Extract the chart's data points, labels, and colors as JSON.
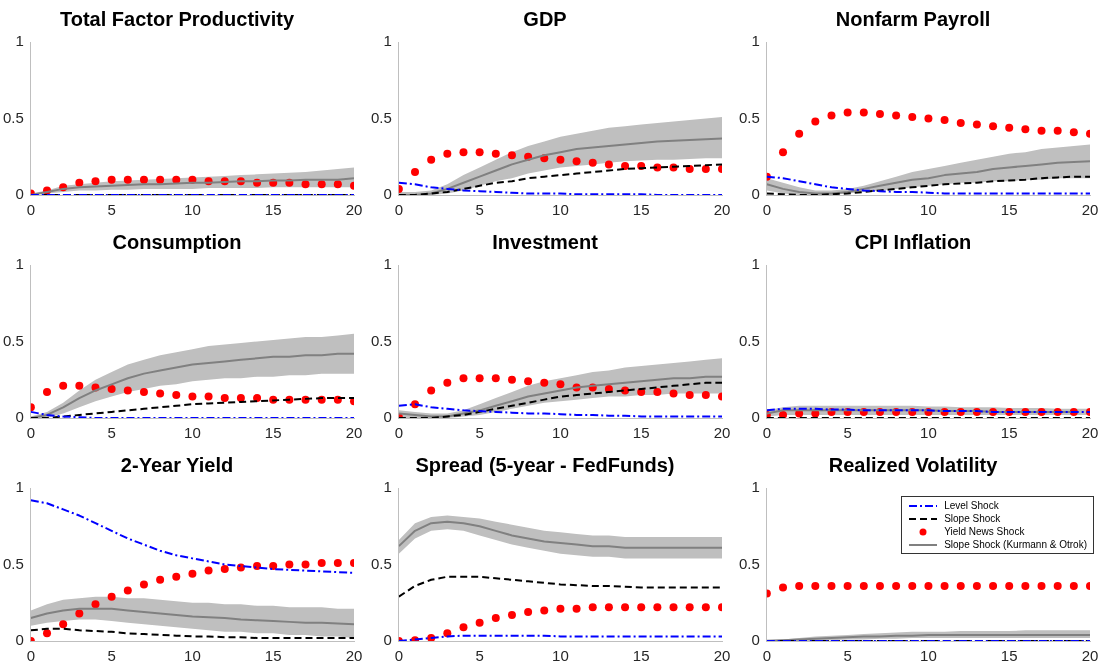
{
  "chart_data": [
    {
      "type": "line",
      "title": "Total Factor Productivity",
      "x": [
        0,
        1,
        2,
        3,
        4,
        5,
        6,
        7,
        8,
        9,
        10,
        11,
        12,
        13,
        14,
        15,
        16,
        17,
        18,
        19,
        20
      ],
      "xlim": [
        0,
        20
      ],
      "xticks": [
        0,
        5,
        10,
        15,
        20
      ],
      "ylim": [
        0,
        1
      ],
      "yticks": [
        0,
        0.5,
        1
      ],
      "grid": false,
      "legend": false,
      "series": [
        {
          "type": "line",
          "color": "#0000ff",
          "line_style": "dashdot",
          "values": [
            0,
            0,
            0,
            0,
            0,
            0,
            0,
            0,
            0,
            0,
            0,
            0,
            0,
            0,
            0,
            0,
            0,
            0,
            0,
            0,
            0
          ]
        },
        {
          "type": "line",
          "color": "#000000",
          "line_style": "dashed",
          "values": [
            0,
            0,
            0,
            0,
            0,
            0,
            0,
            0,
            0,
            0,
            0,
            0,
            0,
            0,
            0,
            0,
            0,
            0,
            0,
            0,
            0
          ]
        },
        {
          "type": "scatter",
          "color": "#ff0000",
          "marker": "circle",
          "values": [
            0.01,
            0.03,
            0.05,
            0.08,
            0.09,
            0.1,
            0.1,
            0.1,
            0.1,
            0.1,
            0.1,
            0.09,
            0.09,
            0.09,
            0.08,
            0.08,
            0.08,
            0.07,
            0.07,
            0.07,
            0.06
          ]
        },
        {
          "type": "line",
          "color": "#808080",
          "line_style": "solid",
          "values": [
            0,
            0.02,
            0.04,
            0.05,
            0.055,
            0.06,
            0.065,
            0.07,
            0.07,
            0.075,
            0.08,
            0.08,
            0.085,
            0.09,
            0.09,
            0.095,
            0.095,
            0.1,
            0.1,
            0.1,
            0.11
          ],
          "lower": [
            0,
            0.01,
            0.02,
            0.03,
            0.03,
            0.035,
            0.035,
            0.04,
            0.04,
            0.04,
            0.04,
            0.045,
            0.045,
            0.045,
            0.045,
            0.05,
            0.05,
            0.05,
            0.05,
            0.05,
            0.05
          ],
          "upper": [
            0.01,
            0.03,
            0.06,
            0.07,
            0.08,
            0.09,
            0.095,
            0.1,
            0.105,
            0.11,
            0.115,
            0.12,
            0.125,
            0.13,
            0.135,
            0.14,
            0.145,
            0.15,
            0.16,
            0.17,
            0.18
          ]
        }
      ]
    },
    {
      "type": "line",
      "title": "GDP",
      "x": [
        0,
        1,
        2,
        3,
        4,
        5,
        6,
        7,
        8,
        9,
        10,
        11,
        12,
        13,
        14,
        15,
        16,
        17,
        18,
        19,
        20
      ],
      "xlim": [
        0,
        20
      ],
      "xticks": [
        0,
        5,
        10,
        15,
        20
      ],
      "ylim": [
        0,
        1
      ],
      "yticks": [
        0,
        0.5,
        1
      ],
      "grid": false,
      "legend": false,
      "series": [
        {
          "type": "line",
          "color": "#0000ff",
          "line_style": "dashdot",
          "values": [
            0.08,
            0.07,
            0.05,
            0.04,
            0.03,
            0.025,
            0.02,
            0.015,
            0.01,
            0.01,
            0.01,
            0.005,
            0.005,
            0.005,
            0.005,
            0.005,
            0,
            0,
            0,
            0,
            0
          ]
        },
        {
          "type": "line",
          "color": "#000000",
          "line_style": "dashed",
          "values": [
            0,
            0,
            0.01,
            0.02,
            0.04,
            0.06,
            0.08,
            0.09,
            0.11,
            0.12,
            0.13,
            0.14,
            0.15,
            0.16,
            0.17,
            0.175,
            0.18,
            0.185,
            0.19,
            0.195,
            0.2
          ]
        },
        {
          "type": "scatter",
          "color": "#ff0000",
          "marker": "circle",
          "values": [
            0.04,
            0.15,
            0.23,
            0.27,
            0.28,
            0.28,
            0.27,
            0.26,
            0.25,
            0.24,
            0.23,
            0.22,
            0.21,
            0.2,
            0.19,
            0.19,
            0.18,
            0.18,
            0.17,
            0.17,
            0.17
          ]
        },
        {
          "type": "line",
          "color": "#808080",
          "line_style": "solid",
          "values": [
            0,
            0,
            0.01,
            0.04,
            0.08,
            0.12,
            0.16,
            0.2,
            0.23,
            0.26,
            0.28,
            0.3,
            0.31,
            0.32,
            0.33,
            0.34,
            0.35,
            0.355,
            0.36,
            0.365,
            0.37
          ],
          "lower": [
            0,
            0,
            0,
            0.01,
            0.03,
            0.06,
            0.09,
            0.11,
            0.14,
            0.16,
            0.18,
            0.19,
            0.2,
            0.21,
            0.22,
            0.225,
            0.23,
            0.23,
            0.235,
            0.24,
            0.24
          ],
          "upper": [
            0.02,
            0.02,
            0.03,
            0.07,
            0.13,
            0.18,
            0.23,
            0.28,
            0.32,
            0.35,
            0.38,
            0.4,
            0.42,
            0.44,
            0.45,
            0.46,
            0.47,
            0.48,
            0.49,
            0.5,
            0.51
          ]
        }
      ]
    },
    {
      "type": "line",
      "title": "Nonfarm Payroll",
      "x": [
        0,
        1,
        2,
        3,
        4,
        5,
        6,
        7,
        8,
        9,
        10,
        11,
        12,
        13,
        14,
        15,
        16,
        17,
        18,
        19,
        20
      ],
      "xlim": [
        0,
        20
      ],
      "xticks": [
        0,
        5,
        10,
        15,
        20
      ],
      "ylim": [
        0,
        1
      ],
      "yticks": [
        0,
        0.5,
        1
      ],
      "grid": false,
      "legend": false,
      "series": [
        {
          "type": "line",
          "color": "#0000ff",
          "line_style": "dashdot",
          "values": [
            0.12,
            0.11,
            0.09,
            0.07,
            0.05,
            0.04,
            0.03,
            0.025,
            0.02,
            0.02,
            0.015,
            0.01,
            0.01,
            0.01,
            0.01,
            0.01,
            0.01,
            0.01,
            0.01,
            0.01,
            0.01
          ]
        },
        {
          "type": "line",
          "color": "#000000",
          "line_style": "dashed",
          "values": [
            0.01,
            0.005,
            0,
            0,
            0.005,
            0.01,
            0.02,
            0.03,
            0.04,
            0.05,
            0.06,
            0.07,
            0.075,
            0.08,
            0.09,
            0.095,
            0.1,
            0.11,
            0.115,
            0.12,
            0.12
          ]
        },
        {
          "type": "scatter",
          "color": "#ff0000",
          "marker": "circle",
          "values": [
            0.12,
            0.28,
            0.4,
            0.48,
            0.52,
            0.54,
            0.54,
            0.53,
            0.52,
            0.51,
            0.5,
            0.49,
            0.47,
            0.46,
            0.45,
            0.44,
            0.43,
            0.42,
            0.42,
            0.41,
            0.4
          ]
        },
        {
          "type": "line",
          "color": "#808080",
          "line_style": "solid",
          "values": [
            0.07,
            0.04,
            0.02,
            0.01,
            0.01,
            0.02,
            0.04,
            0.06,
            0.08,
            0.1,
            0.11,
            0.13,
            0.14,
            0.15,
            0.17,
            0.18,
            0.19,
            0.2,
            0.21,
            0.215,
            0.22
          ],
          "lower": [
            0.03,
            0.01,
            0,
            0,
            0,
            0.01,
            0.02,
            0.03,
            0.04,
            0.05,
            0.06,
            0.07,
            0.08,
            0.08,
            0.09,
            0.09,
            0.1,
            0.1,
            0.11,
            0.11,
            0.11
          ],
          "upper": [
            0.11,
            0.08,
            0.05,
            0.03,
            0.03,
            0.04,
            0.06,
            0.09,
            0.12,
            0.15,
            0.17,
            0.19,
            0.21,
            0.23,
            0.25,
            0.27,
            0.28,
            0.3,
            0.31,
            0.32,
            0.33
          ]
        }
      ]
    },
    {
      "type": "line",
      "title": "Consumption",
      "x": [
        0,
        1,
        2,
        3,
        4,
        5,
        6,
        7,
        8,
        9,
        10,
        11,
        12,
        13,
        14,
        15,
        16,
        17,
        18,
        19,
        20
      ],
      "xlim": [
        0,
        20
      ],
      "xticks": [
        0,
        5,
        10,
        15,
        20
      ],
      "ylim": [
        0,
        1
      ],
      "yticks": [
        0,
        0.5,
        1
      ],
      "grid": false,
      "legend": false,
      "series": [
        {
          "type": "line",
          "color": "#0000ff",
          "line_style": "dashdot",
          "values": [
            0.04,
            0.02,
            0.01,
            0.005,
            0,
            0,
            0,
            0,
            0,
            0,
            0,
            0,
            0,
            0,
            0,
            0,
            0,
            0,
            0,
            0,
            0
          ]
        },
        {
          "type": "line",
          "color": "#000000",
          "line_style": "dashed",
          "values": [
            0,
            0,
            0.01,
            0.02,
            0.03,
            0.04,
            0.05,
            0.06,
            0.07,
            0.08,
            0.09,
            0.095,
            0.1,
            0.105,
            0.11,
            0.115,
            0.12,
            0.125,
            0.13,
            0.13,
            0.13
          ]
        },
        {
          "type": "scatter",
          "color": "#ff0000",
          "marker": "circle",
          "values": [
            0.07,
            0.17,
            0.21,
            0.21,
            0.2,
            0.19,
            0.18,
            0.17,
            0.16,
            0.15,
            0.14,
            0.14,
            0.13,
            0.13,
            0.13,
            0.12,
            0.12,
            0.12,
            0.12,
            0.12,
            0.11
          ]
        },
        {
          "type": "line",
          "color": "#808080",
          "line_style": "solid",
          "values": [
            0,
            0.02,
            0.07,
            0.13,
            0.18,
            0.22,
            0.26,
            0.29,
            0.31,
            0.33,
            0.35,
            0.36,
            0.37,
            0.38,
            0.39,
            0.4,
            0.4,
            0.41,
            0.41,
            0.42,
            0.42
          ],
          "lower": [
            0,
            0,
            0.03,
            0.07,
            0.11,
            0.14,
            0.17,
            0.19,
            0.21,
            0.22,
            0.24,
            0.25,
            0.26,
            0.26,
            0.27,
            0.27,
            0.28,
            0.28,
            0.29,
            0.29,
            0.29
          ],
          "upper": [
            0.01,
            0.04,
            0.1,
            0.18,
            0.25,
            0.3,
            0.35,
            0.38,
            0.41,
            0.43,
            0.45,
            0.47,
            0.48,
            0.49,
            0.5,
            0.51,
            0.52,
            0.53,
            0.53,
            0.54,
            0.55
          ]
        }
      ]
    },
    {
      "type": "line",
      "title": "Investment",
      "x": [
        0,
        1,
        2,
        3,
        4,
        5,
        6,
        7,
        8,
        9,
        10,
        11,
        12,
        13,
        14,
        15,
        16,
        17,
        18,
        19,
        20
      ],
      "xlim": [
        0,
        20
      ],
      "xticks": [
        0,
        5,
        10,
        15,
        20
      ],
      "ylim": [
        0,
        1
      ],
      "yticks": [
        0,
        0.5,
        1
      ],
      "grid": false,
      "legend": false,
      "series": [
        {
          "type": "line",
          "color": "#0000ff",
          "line_style": "dashdot",
          "values": [
            0.08,
            0.09,
            0.07,
            0.06,
            0.05,
            0.045,
            0.04,
            0.035,
            0.03,
            0.03,
            0.025,
            0.02,
            0.02,
            0.015,
            0.015,
            0.01,
            0.01,
            0.01,
            0.01,
            0.01,
            0.01
          ]
        },
        {
          "type": "line",
          "color": "#000000",
          "line_style": "dashed",
          "values": [
            0,
            0,
            0,
            0.01,
            0.02,
            0.04,
            0.06,
            0.08,
            0.1,
            0.12,
            0.14,
            0.15,
            0.16,
            0.17,
            0.18,
            0.19,
            0.2,
            0.21,
            0.22,
            0.23,
            0.23
          ]
        },
        {
          "type": "scatter",
          "color": "#ff0000",
          "marker": "circle",
          "values": [
            0.005,
            0.09,
            0.18,
            0.23,
            0.26,
            0.26,
            0.26,
            0.25,
            0.24,
            0.23,
            0.22,
            0.2,
            0.2,
            0.19,
            0.18,
            0.17,
            0.17,
            0.16,
            0.15,
            0.15,
            0.14
          ]
        },
        {
          "type": "line",
          "color": "#808080",
          "line_style": "solid",
          "values": [
            0.03,
            0.02,
            0.01,
            0.01,
            0.03,
            0.05,
            0.08,
            0.11,
            0.14,
            0.16,
            0.18,
            0.2,
            0.21,
            0.22,
            0.23,
            0.24,
            0.25,
            0.26,
            0.26,
            0.27,
            0.27
          ],
          "lower": [
            0,
            0,
            0,
            0,
            0.01,
            0.02,
            0.04,
            0.06,
            0.08,
            0.1,
            0.11,
            0.12,
            0.13,
            0.14,
            0.14,
            0.15,
            0.15,
            0.16,
            0.16,
            0.16,
            0.16
          ],
          "upper": [
            0.05,
            0.04,
            0.03,
            0.03,
            0.05,
            0.09,
            0.13,
            0.17,
            0.21,
            0.24,
            0.26,
            0.28,
            0.3,
            0.31,
            0.33,
            0.34,
            0.35,
            0.36,
            0.37,
            0.38,
            0.39
          ]
        }
      ]
    },
    {
      "type": "line",
      "title": "CPI Inflation",
      "x": [
        0,
        1,
        2,
        3,
        4,
        5,
        6,
        7,
        8,
        9,
        10,
        11,
        12,
        13,
        14,
        15,
        16,
        17,
        18,
        19,
        20
      ],
      "xlim": [
        0,
        20
      ],
      "xticks": [
        0,
        5,
        10,
        15,
        20
      ],
      "ylim": [
        0,
        1
      ],
      "yticks": [
        0,
        0.5,
        1
      ],
      "grid": false,
      "legend": false,
      "series": [
        {
          "type": "line",
          "color": "#0000ff",
          "line_style": "dashdot",
          "values": [
            0.05,
            0.06,
            0.06,
            0.06,
            0.055,
            0.055,
            0.05,
            0.05,
            0.05,
            0.05,
            0.05,
            0.045,
            0.045,
            0.045,
            0.04,
            0.04,
            0.04,
            0.04,
            0.04,
            0.04,
            0.04
          ]
        },
        {
          "type": "line",
          "color": "#000000",
          "line_style": "dashed",
          "values": [
            0,
            0,
            0,
            0,
            0,
            0,
            0,
            0,
            0,
            0,
            0,
            0,
            0,
            0,
            0,
            0,
            0,
            0,
            0,
            0,
            0
          ]
        },
        {
          "type": "scatter",
          "color": "#ff0000",
          "marker": "circle",
          "values": [
            0.02,
            0.02,
            0.03,
            0.03,
            0.04,
            0.04,
            0.04,
            0.04,
            0.04,
            0.04,
            0.04,
            0.04,
            0.04,
            0.04,
            0.04,
            0.04,
            0.04,
            0.04,
            0.04,
            0.04,
            0.04
          ]
        },
        {
          "type": "line",
          "color": "#808080",
          "line_style": "solid",
          "values": [
            0.03,
            0.05,
            0.05,
            0.05,
            0.05,
            0.05,
            0.05,
            0.05,
            0.05,
            0.05,
            0.05,
            0.045,
            0.045,
            0.045,
            0.04,
            0.04,
            0.04,
            0.04,
            0.04,
            0.04,
            null
          ],
          "lower": [
            0.01,
            0.02,
            0.02,
            0.02,
            0.02,
            0.02,
            0.02,
            0.02,
            0.02,
            0.02,
            0.02,
            0.02,
            0.02,
            0.02,
            0.02,
            0.02,
            0.02,
            0.02,
            0.02,
            0.02,
            0.02
          ],
          "upper": [
            0.05,
            0.07,
            0.08,
            0.08,
            0.08,
            0.08,
            0.08,
            0.08,
            0.08,
            0.08,
            0.075,
            0.075,
            0.07,
            0.07,
            0.07,
            0.065,
            0.065,
            0.065,
            0.06,
            0.06,
            0.06
          ]
        }
      ]
    },
    {
      "type": "line",
      "title": "2-Year Yield",
      "x": [
        0,
        1,
        2,
        3,
        4,
        5,
        6,
        7,
        8,
        9,
        10,
        11,
        12,
        13,
        14,
        15,
        16,
        17,
        18,
        19,
        20
      ],
      "xlim": [
        0,
        20
      ],
      "xticks": [
        0,
        5,
        10,
        15,
        20
      ],
      "ylim": [
        0,
        1
      ],
      "yticks": [
        0,
        0.5,
        1
      ],
      "grid": false,
      "legend": false,
      "series": [
        {
          "type": "line",
          "color": "#0000ff",
          "line_style": "dashdot",
          "values": [
            0.92,
            0.9,
            0.86,
            0.82,
            0.77,
            0.72,
            0.67,
            0.63,
            0.59,
            0.56,
            0.54,
            0.52,
            0.5,
            0.49,
            0.48,
            0.47,
            0.465,
            0.46,
            0.455,
            0.45,
            0.445
          ]
        },
        {
          "type": "line",
          "color": "#000000",
          "line_style": "dashed",
          "values": [
            0.07,
            0.08,
            0.08,
            0.07,
            0.065,
            0.06,
            0.05,
            0.045,
            0.04,
            0.035,
            0.03,
            0.03,
            0.025,
            0.025,
            0.02,
            0.02,
            0.02,
            0.02,
            0.02,
            0.02,
            0.02
          ]
        },
        {
          "type": "scatter",
          "color": "#ff0000",
          "marker": "circle",
          "values": [
            0,
            0.05,
            0.11,
            0.18,
            0.24,
            0.29,
            0.33,
            0.37,
            0.4,
            0.42,
            0.44,
            0.46,
            0.47,
            0.48,
            0.49,
            0.49,
            0.5,
            0.5,
            0.51,
            0.51,
            0.51
          ]
        },
        {
          "type": "line",
          "color": "#808080",
          "line_style": "solid",
          "values": [
            0.15,
            0.18,
            0.2,
            0.21,
            0.21,
            0.21,
            0.2,
            0.19,
            0.18,
            0.17,
            0.16,
            0.155,
            0.15,
            0.14,
            0.135,
            0.13,
            0.125,
            0.12,
            0.12,
            0.115,
            0.11
          ],
          "lower": [
            0.1,
            0.12,
            0.13,
            0.14,
            0.14,
            0.13,
            0.12,
            0.11,
            0.1,
            0.09,
            0.08,
            0.07,
            0.06,
            0.06,
            0.05,
            0.05,
            0.04,
            0.04,
            0.03,
            0.03,
            0.02
          ],
          "upper": [
            0.2,
            0.24,
            0.27,
            0.28,
            0.29,
            0.29,
            0.28,
            0.28,
            0.27,
            0.26,
            0.25,
            0.25,
            0.24,
            0.24,
            0.23,
            0.23,
            0.22,
            0.22,
            0.22,
            0.21,
            0.21
          ]
        }
      ]
    },
    {
      "type": "line",
      "title": "Spread (5-year - FedFunds)",
      "x": [
        0,
        1,
        2,
        3,
        4,
        5,
        6,
        7,
        8,
        9,
        10,
        11,
        12,
        13,
        14,
        15,
        16,
        17,
        18,
        19,
        20
      ],
      "xlim": [
        0,
        20
      ],
      "xticks": [
        0,
        5,
        10,
        15,
        20
      ],
      "ylim": [
        0,
        1
      ],
      "yticks": [
        0,
        0.5,
        1
      ],
      "grid": false,
      "legend": false,
      "series": [
        {
          "type": "line",
          "color": "#0000ff",
          "line_style": "dashdot",
          "values": [
            0,
            0.01,
            0.02,
            0.03,
            0.035,
            0.035,
            0.035,
            0.035,
            0.035,
            0.035,
            0.03,
            0.03,
            0.03,
            0.03,
            0.03,
            0.03,
            0.03,
            0.03,
            0.03,
            0.03,
            0.03
          ]
        },
        {
          "type": "line",
          "color": "#000000",
          "line_style": "dashed",
          "values": [
            0.29,
            0.36,
            0.4,
            0.42,
            0.42,
            0.42,
            0.41,
            0.4,
            0.39,
            0.38,
            0.37,
            0.365,
            0.36,
            0.36,
            0.355,
            0.35,
            0.35,
            0.35,
            0.35,
            0.35,
            0.35
          ]
        },
        {
          "type": "scatter",
          "color": "#ff0000",
          "marker": "circle",
          "values": [
            0,
            0.005,
            0.02,
            0.05,
            0.09,
            0.12,
            0.15,
            0.17,
            0.19,
            0.2,
            0.21,
            0.21,
            0.22,
            0.22,
            0.22,
            0.22,
            0.22,
            0.22,
            0.22,
            0.22,
            0.22
          ]
        },
        {
          "type": "line",
          "color": "#808080",
          "line_style": "solid",
          "values": [
            0.62,
            0.72,
            0.77,
            0.78,
            0.77,
            0.75,
            0.72,
            0.69,
            0.67,
            0.65,
            0.64,
            0.63,
            0.62,
            0.62,
            0.61,
            0.61,
            0.61,
            0.61,
            0.61,
            0.61,
            0.61
          ],
          "lower": [
            0.57,
            0.67,
            0.72,
            0.73,
            0.72,
            0.69,
            0.66,
            0.63,
            0.61,
            0.59,
            0.57,
            0.56,
            0.55,
            0.55,
            0.54,
            0.54,
            0.54,
            0.54,
            0.54,
            0.54,
            0.54
          ],
          "upper": [
            0.66,
            0.77,
            0.81,
            0.82,
            0.81,
            0.8,
            0.78,
            0.76,
            0.74,
            0.72,
            0.71,
            0.7,
            0.69,
            0.69,
            0.68,
            0.68,
            0.68,
            0.68,
            0.68,
            0.68,
            0.68
          ]
        }
      ]
    },
    {
      "type": "line",
      "title": "Realized Volatility",
      "x": [
        0,
        1,
        2,
        3,
        4,
        5,
        6,
        7,
        8,
        9,
        10,
        11,
        12,
        13,
        14,
        15,
        16,
        17,
        18,
        19,
        20
      ],
      "xlim": [
        0,
        20
      ],
      "xticks": [
        0,
        5,
        10,
        15,
        20
      ],
      "ylim": [
        0,
        1
      ],
      "yticks": [
        0,
        0.5,
        1
      ],
      "grid": false,
      "legend": "top right",
      "series": [
        {
          "name": "Level Shock",
          "type": "line",
          "color": "#0000ff",
          "line_style": "dashdot",
          "values": [
            0,
            0,
            0,
            0,
            0,
            0,
            0,
            0,
            0,
            0,
            0,
            0,
            0,
            0,
            0,
            0,
            0,
            0,
            0,
            0,
            0
          ]
        },
        {
          "name": "Slope Shock",
          "type": "line",
          "color": "#000000",
          "line_style": "dashed",
          "values": [
            0,
            0,
            0,
            0,
            0,
            0,
            0,
            0,
            0,
            0,
            0,
            0,
            0,
            0,
            0,
            0,
            0,
            0,
            0,
            0,
            0
          ]
        },
        {
          "name": "Yield News Shock",
          "type": "scatter",
          "color": "#ff0000",
          "marker": "circle",
          "values": [
            0.31,
            0.35,
            0.36,
            0.36,
            0.36,
            0.36,
            0.36,
            0.36,
            0.36,
            0.36,
            0.36,
            0.36,
            0.36,
            0.36,
            0.36,
            0.36,
            0.36,
            0.36,
            0.36,
            0.36,
            0.36
          ]
        },
        {
          "name": "Slope Shock (Kurmann & Otrok)",
          "type": "line",
          "color": "#808080",
          "line_style": "solid",
          "values": [
            0,
            0.005,
            0.01,
            0.015,
            0.02,
            0.025,
            0.03,
            0.03,
            0.035,
            0.035,
            0.04,
            0.04,
            0.04,
            0.04,
            0.04,
            0.04,
            0.04,
            0.04,
            0.04,
            0.04,
            0.04
          ],
          "lower": [
            0,
            0,
            0,
            0,
            0.005,
            0.01,
            0.01,
            0.015,
            0.015,
            0.02,
            0.02,
            0.02,
            0.02,
            0.02,
            0.02,
            0.02,
            0.02,
            0.02,
            0.02,
            0.02,
            0.02
          ],
          "upper": [
            0.01,
            0.01,
            0.02,
            0.03,
            0.035,
            0.04,
            0.045,
            0.05,
            0.055,
            0.06,
            0.06,
            0.06,
            0.065,
            0.065,
            0.065,
            0.065,
            0.07,
            0.07,
            0.07,
            0.07,
            0.07
          ]
        }
      ]
    }
  ]
}
